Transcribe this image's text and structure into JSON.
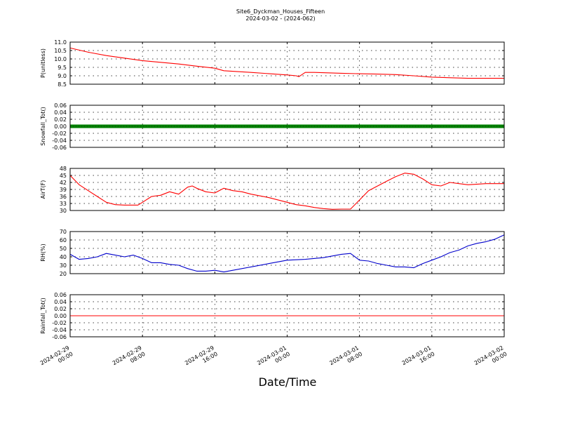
{
  "figure": {
    "title": "Site6_Dyckman_Houses_Fifteen",
    "subtitle": "2024-03-02 - (2024-062)",
    "xlabel": "Date/Time"
  },
  "chart_data": {
    "type": "line",
    "x_ticks": [
      {
        "l1": "2024-02-29",
        "l2": "00:00"
      },
      {
        "l1": "2024-02-29",
        "l2": "08:00"
      },
      {
        "l1": "2024-02-29",
        "l2": "16:00"
      },
      {
        "l1": "2024-03-01",
        "l2": "00:00"
      },
      {
        "l1": "2024-03-01",
        "l2": "08:00"
      },
      {
        "l1": "2024-03-01",
        "l2": "16:00"
      },
      {
        "l1": "2024-03-02",
        "l2": "00:00"
      }
    ],
    "xlim_hours": [
      0,
      48
    ],
    "grid": true,
    "panels": [
      {
        "ylabel": "P(unitless)",
        "ylim": [
          8.5,
          11.0
        ],
        "yticks": [
          "8.5",
          "9.0",
          "9.5",
          "10.0",
          "10.5",
          "11.0"
        ],
        "ytick_values": [
          8.5,
          9.0,
          9.5,
          10.0,
          10.5,
          11.0
        ],
        "color": "#ff0000",
        "style": "line",
        "x_hours": [
          0,
          2,
          4,
          6,
          8,
          10,
          12,
          14,
          16,
          17,
          20,
          24,
          25,
          25.3,
          26,
          27,
          30,
          32,
          34,
          36,
          38,
          40,
          44,
          48
        ],
        "y": [
          10.65,
          10.4,
          10.2,
          10.05,
          9.9,
          9.8,
          9.7,
          9.57,
          9.45,
          9.3,
          9.2,
          9.05,
          9.0,
          8.95,
          9.2,
          9.2,
          9.15,
          9.12,
          9.1,
          9.07,
          9.0,
          8.92,
          8.85,
          8.85
        ]
      },
      {
        "ylabel": "Snowfall_Tot()",
        "ylim": [
          -0.06,
          0.06
        ],
        "yticks": [
          "-0.06",
          "-0.04",
          "-0.02",
          "0.00",
          "0.02",
          "0.04",
          "0.06"
        ],
        "ytick_values": [
          -0.06,
          -0.04,
          -0.02,
          0.0,
          0.02,
          0.04,
          0.06
        ],
        "color": "#008000",
        "style": "markers",
        "x_hours": [
          0,
          48
        ],
        "y": [
          0.0,
          0.0
        ]
      },
      {
        "ylabel": "AirT(F)",
        "ylim": [
          30,
          48
        ],
        "yticks": [
          "30",
          "33",
          "36",
          "39",
          "42",
          "45",
          "48"
        ],
        "ytick_values": [
          30,
          33,
          36,
          39,
          42,
          45,
          48
        ],
        "color": "#ff0000",
        "style": "line",
        "x_hours": [
          0,
          1,
          2,
          3,
          4,
          5,
          6,
          7,
          7.5,
          8,
          9,
          10,
          11,
          12,
          13,
          13.5,
          14,
          15,
          16,
          17,
          18,
          19,
          20,
          22,
          24,
          25,
          26,
          27,
          28,
          29,
          30,
          31,
          32,
          33,
          34,
          35,
          36,
          37,
          38,
          39,
          40,
          41,
          42,
          43,
          44,
          46,
          48
        ],
        "y": [
          45,
          41,
          38.5,
          36,
          33.5,
          32.5,
          32.3,
          32.3,
          32.3,
          33.5,
          36,
          36.5,
          38,
          37,
          40,
          40.5,
          39.5,
          38,
          37.5,
          39.5,
          38.5,
          38,
          37,
          35.5,
          33.5,
          32.5,
          32,
          31.3,
          30.8,
          30.5,
          30.6,
          30.6,
          34.5,
          38.5,
          40.5,
          42.5,
          44.5,
          46,
          45.5,
          43.5,
          41,
          40.5,
          42,
          41.5,
          41,
          41.5,
          41.5
        ]
      },
      {
        "ylabel": "RH(%)",
        "ylim": [
          20,
          70
        ],
        "yticks": [
          "20",
          "30",
          "40",
          "50",
          "60",
          "70"
        ],
        "ytick_values": [
          20,
          30,
          40,
          50,
          60,
          70
        ],
        "color": "#0000cc",
        "style": "line",
        "x_hours": [
          0,
          1,
          2,
          3,
          4,
          5,
          6,
          7,
          8,
          9,
          10,
          11,
          12,
          13,
          14,
          15,
          16,
          17,
          18,
          20,
          22,
          24,
          26,
          28,
          30,
          31,
          32,
          33,
          34,
          35,
          36,
          37,
          38,
          39,
          40,
          41,
          42,
          43,
          44,
          45,
          46,
          47,
          48
        ],
        "y": [
          43,
          37,
          38,
          40,
          44,
          42,
          40,
          42,
          38,
          33,
          33,
          31,
          30,
          26,
          23,
          23,
          24,
          22,
          24,
          28,
          32,
          36,
          37,
          39,
          43,
          44,
          36,
          35,
          32,
          30,
          28,
          28,
          27,
          32,
          36,
          40,
          45,
          48,
          53,
          56,
          58,
          61,
          66
        ]
      },
      {
        "ylabel": "Rainfall_Tot()",
        "ylim": [
          -0.06,
          0.06
        ],
        "yticks": [
          "-0.06",
          "-0.04",
          "-0.02",
          "0.00",
          "0.02",
          "0.04",
          "0.06"
        ],
        "ytick_values": [
          -0.06,
          -0.04,
          -0.02,
          0.0,
          0.02,
          0.04,
          0.06
        ],
        "color": "#ff0000",
        "style": "line",
        "x_hours": [
          0,
          48
        ],
        "y": [
          0.0,
          0.0
        ]
      }
    ]
  }
}
